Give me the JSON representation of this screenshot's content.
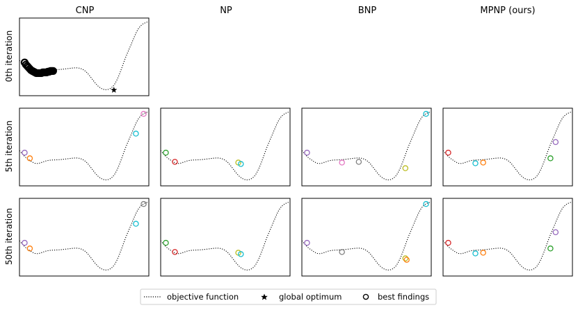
{
  "columns": [
    "CNP",
    "NP",
    "BNP",
    "MPNP (ours)"
  ],
  "rows": [
    "0th iteration",
    "5th iteration",
    "50th iteration"
  ],
  "legend": {
    "placement": "bottom-center",
    "items": [
      {
        "key": "objective",
        "label": "objective function",
        "marker": "dotted-line"
      },
      {
        "key": "optimum",
        "label": "global optimum",
        "marker": "star"
      },
      {
        "key": "findings",
        "label": "best findings",
        "marker": "open-circle"
      }
    ]
  },
  "colors": {
    "blue": "#1f77b4",
    "orange": "#ff7f0e",
    "green": "#2ca02c",
    "red": "#d62728",
    "purple": "#9467bd",
    "brown": "#8c564b",
    "pink": "#e377c2",
    "gray": "#7f7f7f",
    "olive": "#bcbd22",
    "cyan": "#17becf",
    "black": "#000000"
  },
  "chart_data": {
    "type": "scatter",
    "grid": false,
    "axes_ticks_visible": false,
    "xlim": [
      0,
      1
    ],
    "ylim": [
      -0.05,
      1.05
    ],
    "objective_function": {
      "style": "dotted",
      "x": [
        0,
        0.05,
        0.08,
        0.12,
        0.2,
        0.3,
        0.4,
        0.48,
        0.52,
        0.56,
        0.6,
        0.65,
        0.7,
        0.73,
        0.76,
        0.79,
        0.82,
        0.85,
        0.88,
        0.91,
        0.95,
        1.0
      ],
      "y": [
        0.45,
        0.35,
        0.31,
        0.27,
        0.3,
        0.32,
        0.34,
        0.33,
        0.28,
        0.19,
        0.1,
        0.04,
        0.05,
        0.1,
        0.2,
        0.34,
        0.49,
        0.62,
        0.75,
        0.87,
        0.96,
        1.0
      ]
    },
    "global_optimum": {
      "x": 0.73,
      "y": 0.03
    },
    "panels": [
      {
        "row": 0,
        "col": 0,
        "points": [
          {
            "x": 0.04,
            "y": 0.42,
            "color": "black"
          },
          {
            "x": 0.05,
            "y": 0.39,
            "color": "black"
          },
          {
            "x": 0.06,
            "y": 0.37,
            "color": "black"
          },
          {
            "x": 0.07,
            "y": 0.35,
            "color": "black"
          },
          {
            "x": 0.08,
            "y": 0.33,
            "color": "black"
          },
          {
            "x": 0.09,
            "y": 0.31,
            "color": "black"
          },
          {
            "x": 0.1,
            "y": 0.3,
            "color": "black"
          },
          {
            "x": 0.11,
            "y": 0.29,
            "color": "black"
          },
          {
            "x": 0.12,
            "y": 0.28,
            "color": "black"
          },
          {
            "x": 0.13,
            "y": 0.27,
            "color": "black"
          },
          {
            "x": 0.14,
            "y": 0.27,
            "color": "black"
          },
          {
            "x": 0.15,
            "y": 0.27,
            "color": "black"
          },
          {
            "x": 0.16,
            "y": 0.27,
            "color": "black"
          },
          {
            "x": 0.17,
            "y": 0.27,
            "color": "black"
          },
          {
            "x": 0.18,
            "y": 0.28,
            "color": "black"
          },
          {
            "x": 0.19,
            "y": 0.28,
            "color": "black"
          },
          {
            "x": 0.2,
            "y": 0.28,
            "color": "black"
          },
          {
            "x": 0.21,
            "y": 0.28,
            "color": "black"
          },
          {
            "x": 0.22,
            "y": 0.29,
            "color": "black"
          },
          {
            "x": 0.23,
            "y": 0.29,
            "color": "black"
          },
          {
            "x": 0.24,
            "y": 0.3,
            "color": "black"
          },
          {
            "x": 0.25,
            "y": 0.3,
            "color": "black"
          },
          {
            "x": 0.26,
            "y": 0.3,
            "color": "black"
          }
        ]
      },
      {
        "row": 1,
        "col": 0,
        "points": [
          {
            "x": 0.04,
            "y": 0.42,
            "color": "purple"
          },
          {
            "x": 0.08,
            "y": 0.34,
            "color": "orange"
          },
          {
            "x": 0.9,
            "y": 0.69,
            "color": "cyan"
          },
          {
            "x": 0.96,
            "y": 0.97,
            "color": "pink"
          }
        ]
      },
      {
        "row": 1,
        "col": 1,
        "points": [
          {
            "x": 0.04,
            "y": 0.42,
            "color": "green"
          },
          {
            "x": 0.11,
            "y": 0.29,
            "color": "red"
          },
          {
            "x": 0.6,
            "y": 0.28,
            "color": "olive"
          },
          {
            "x": 0.62,
            "y": 0.26,
            "color": "cyan"
          }
        ]
      },
      {
        "row": 1,
        "col": 2,
        "points": [
          {
            "x": 0.04,
            "y": 0.42,
            "color": "purple"
          },
          {
            "x": 0.31,
            "y": 0.28,
            "color": "pink"
          },
          {
            "x": 0.44,
            "y": 0.29,
            "color": "gray"
          },
          {
            "x": 0.8,
            "y": 0.2,
            "color": "olive"
          },
          {
            "x": 0.96,
            "y": 0.97,
            "color": "cyan"
          }
        ]
      },
      {
        "row": 1,
        "col": 3,
        "points": [
          {
            "x": 0.04,
            "y": 0.42,
            "color": "red"
          },
          {
            "x": 0.25,
            "y": 0.27,
            "color": "cyan"
          },
          {
            "x": 0.31,
            "y": 0.28,
            "color": "orange"
          },
          {
            "x": 0.83,
            "y": 0.34,
            "color": "green"
          },
          {
            "x": 0.87,
            "y": 0.57,
            "color": "purple"
          }
        ]
      },
      {
        "row": 2,
        "col": 0,
        "points": [
          {
            "x": 0.04,
            "y": 0.42,
            "color": "purple"
          },
          {
            "x": 0.08,
            "y": 0.34,
            "color": "orange"
          },
          {
            "x": 0.9,
            "y": 0.69,
            "color": "cyan"
          },
          {
            "x": 0.96,
            "y": 0.97,
            "color": "gray"
          }
        ]
      },
      {
        "row": 2,
        "col": 1,
        "points": [
          {
            "x": 0.04,
            "y": 0.42,
            "color": "green"
          },
          {
            "x": 0.11,
            "y": 0.29,
            "color": "red"
          },
          {
            "x": 0.6,
            "y": 0.28,
            "color": "olive"
          },
          {
            "x": 0.62,
            "y": 0.26,
            "color": "cyan"
          }
        ]
      },
      {
        "row": 2,
        "col": 2,
        "points": [
          {
            "x": 0.04,
            "y": 0.42,
            "color": "purple"
          },
          {
            "x": 0.31,
            "y": 0.29,
            "color": "gray"
          },
          {
            "x": 0.8,
            "y": 0.2,
            "color": "olive"
          },
          {
            "x": 0.81,
            "y": 0.18,
            "color": "orange"
          },
          {
            "x": 0.96,
            "y": 0.97,
            "color": "cyan"
          }
        ]
      },
      {
        "row": 2,
        "col": 3,
        "points": [
          {
            "x": 0.04,
            "y": 0.42,
            "color": "red"
          },
          {
            "x": 0.25,
            "y": 0.27,
            "color": "cyan"
          },
          {
            "x": 0.31,
            "y": 0.28,
            "color": "orange"
          },
          {
            "x": 0.83,
            "y": 0.34,
            "color": "green"
          },
          {
            "x": 0.87,
            "y": 0.57,
            "color": "purple"
          }
        ]
      }
    ]
  }
}
